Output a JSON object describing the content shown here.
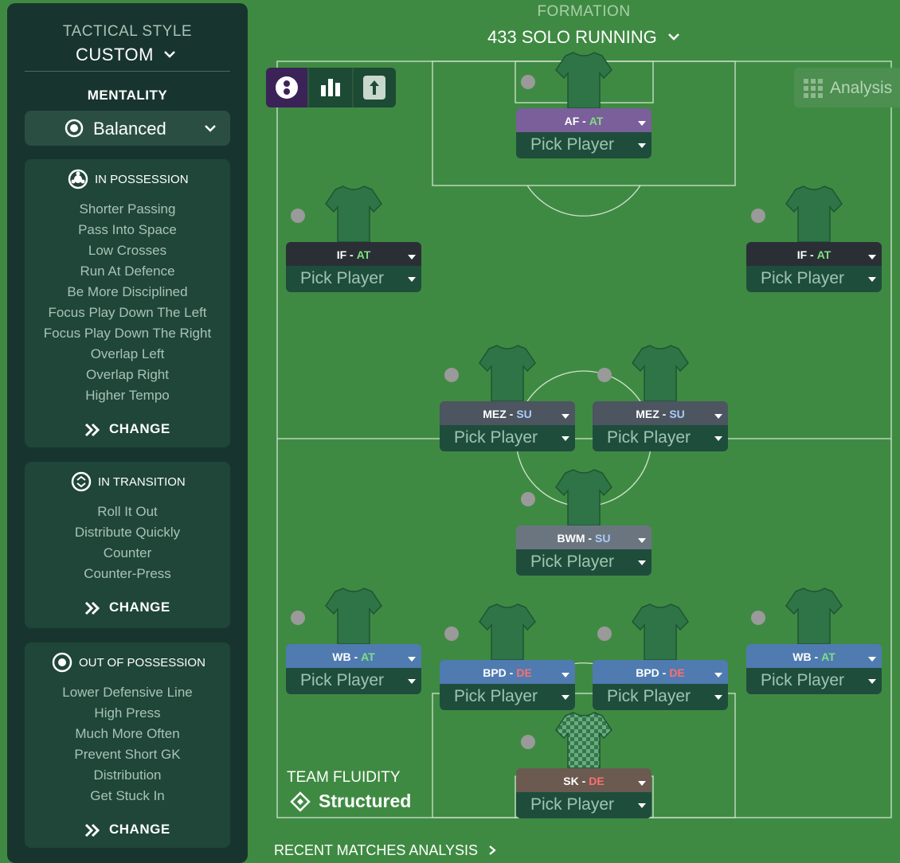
{
  "sidebar": {
    "tactical_style_label": "TACTICAL STYLE",
    "tactical_style": "CUSTOM",
    "mentality_label": "MENTALITY",
    "mentality": "Balanced",
    "sections": [
      {
        "title": "IN POSSESSION",
        "items": [
          "Shorter Passing",
          "Pass Into Space",
          "Low Crosses",
          "Run At Defence",
          "Be More Disciplined",
          "Focus Play Down The Left",
          "Focus Play Down The Right",
          "Overlap Left",
          "Overlap Right",
          "Higher Tempo"
        ],
        "action": "CHANGE"
      },
      {
        "title": "IN TRANSITION",
        "items": [
          "Roll It Out",
          "Distribute Quickly",
          "Counter",
          "Counter-Press"
        ],
        "action": "CHANGE"
      },
      {
        "title": "OUT OF POSSESSION",
        "items": [
          "Lower Defensive Line",
          "High Press",
          "Much More Often",
          "Prevent Short GK",
          "Distribution",
          "Get Stuck In"
        ],
        "action": "CHANGE"
      }
    ]
  },
  "formation": {
    "label": "FORMATION",
    "name": "433 SOLO RUNNING"
  },
  "analysis_button": "Analysis",
  "players": [
    {
      "role": "AF -",
      "duty": "AT",
      "pick": "Pick Player"
    },
    {
      "role": "IF -",
      "duty": "AT",
      "pick": "Pick Player"
    },
    {
      "role": "IF -",
      "duty": "AT",
      "pick": "Pick Player"
    },
    {
      "role": "MEZ -",
      "duty": "SU",
      "pick": "Pick Player"
    },
    {
      "role": "MEZ -",
      "duty": "SU",
      "pick": "Pick Player"
    },
    {
      "role": "BWM -",
      "duty": "SU",
      "pick": "Pick Player"
    },
    {
      "role": "WB -",
      "duty": "AT",
      "pick": "Pick Player"
    },
    {
      "role": "BPD -",
      "duty": "DE",
      "pick": "Pick Player"
    },
    {
      "role": "BPD -",
      "duty": "DE",
      "pick": "Pick Player"
    },
    {
      "role": "WB -",
      "duty": "AT",
      "pick": "Pick Player"
    },
    {
      "role": "SK -",
      "duty": "DE",
      "pick": "Pick Player"
    }
  ],
  "team_fluidity": {
    "label": "TEAM FLUIDITY",
    "value": "Structured"
  },
  "recent_matches": "RECENT MATCHES ANALYSIS"
}
